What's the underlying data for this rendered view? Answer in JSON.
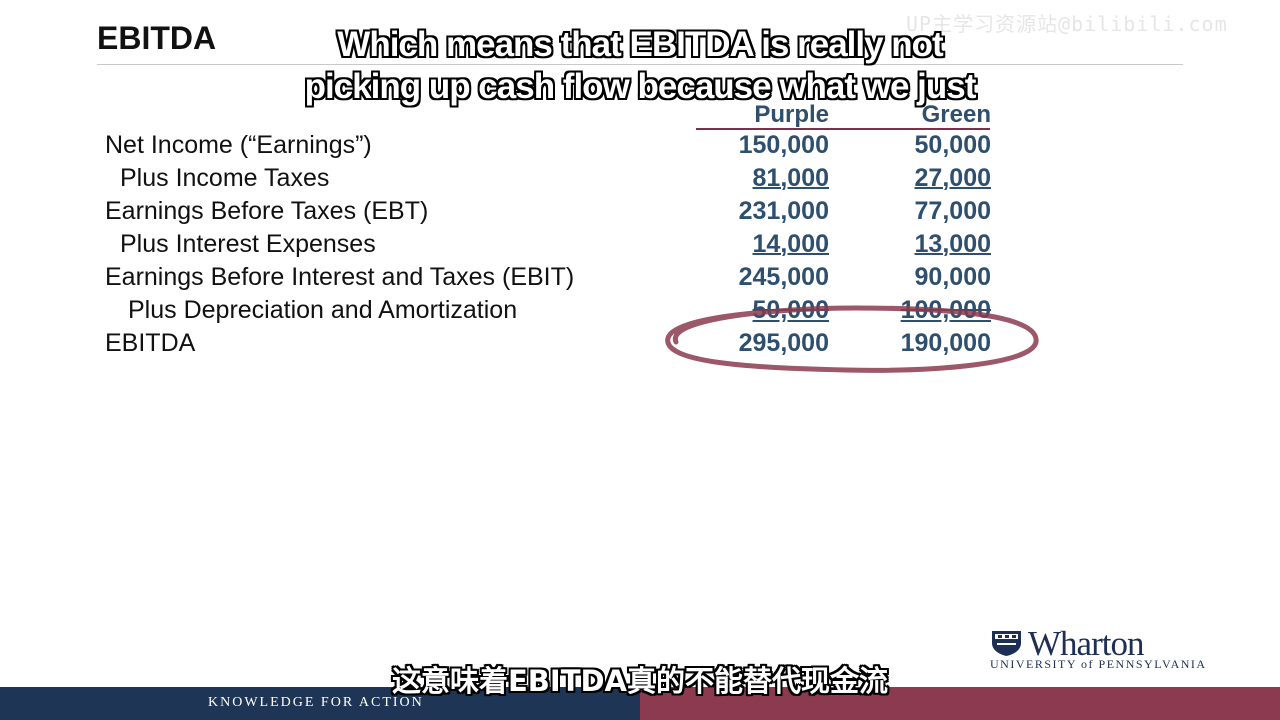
{
  "slide": {
    "title": "EBITDA",
    "watermark": "UP主学习资源站@bilibili.com"
  },
  "captions": {
    "english_line1": "Which means that EBITDA is really not",
    "english_line2": "picking up cash flow because what we just",
    "chinese": "这意味着EBITDA真的不能替代现金流"
  },
  "table": {
    "headers": {
      "purple": "Purple",
      "green": "Green"
    },
    "rows": [
      {
        "label": "Net Income (“Earnings”)",
        "purple": "150,000",
        "green": "50,000"
      },
      {
        "label": "Plus Income Taxes",
        "purple": "81,000",
        "green": "27,000"
      },
      {
        "label": "Earnings Before Taxes (EBT)",
        "purple": "231,000",
        "green": "77,000"
      },
      {
        "label": "Plus Interest Expenses",
        "purple": "14,000",
        "green": "13,000"
      },
      {
        "label": "Earnings Before Interest and Taxes (EBIT)",
        "purple": "245,000",
        "green": "90,000"
      },
      {
        "label": "Plus Depreciation and Amortization",
        "purple": "50,000",
        "green": "100,000"
      },
      {
        "label": "EBITDA",
        "purple": "295,000",
        "green": "190,000"
      }
    ]
  },
  "branding": {
    "logo_name": "Wharton",
    "logo_sub": "UNIVERSITY of PENNSYLVANIA",
    "footer": "KNOWLEDGE FOR ACTION"
  },
  "colors": {
    "values": "#2f4f6e",
    "accent_rule": "#7a2f4a",
    "circle": "#8b3a4f",
    "footer_navy": "#1e3556",
    "footer_maroon": "#8b3a4f"
  }
}
